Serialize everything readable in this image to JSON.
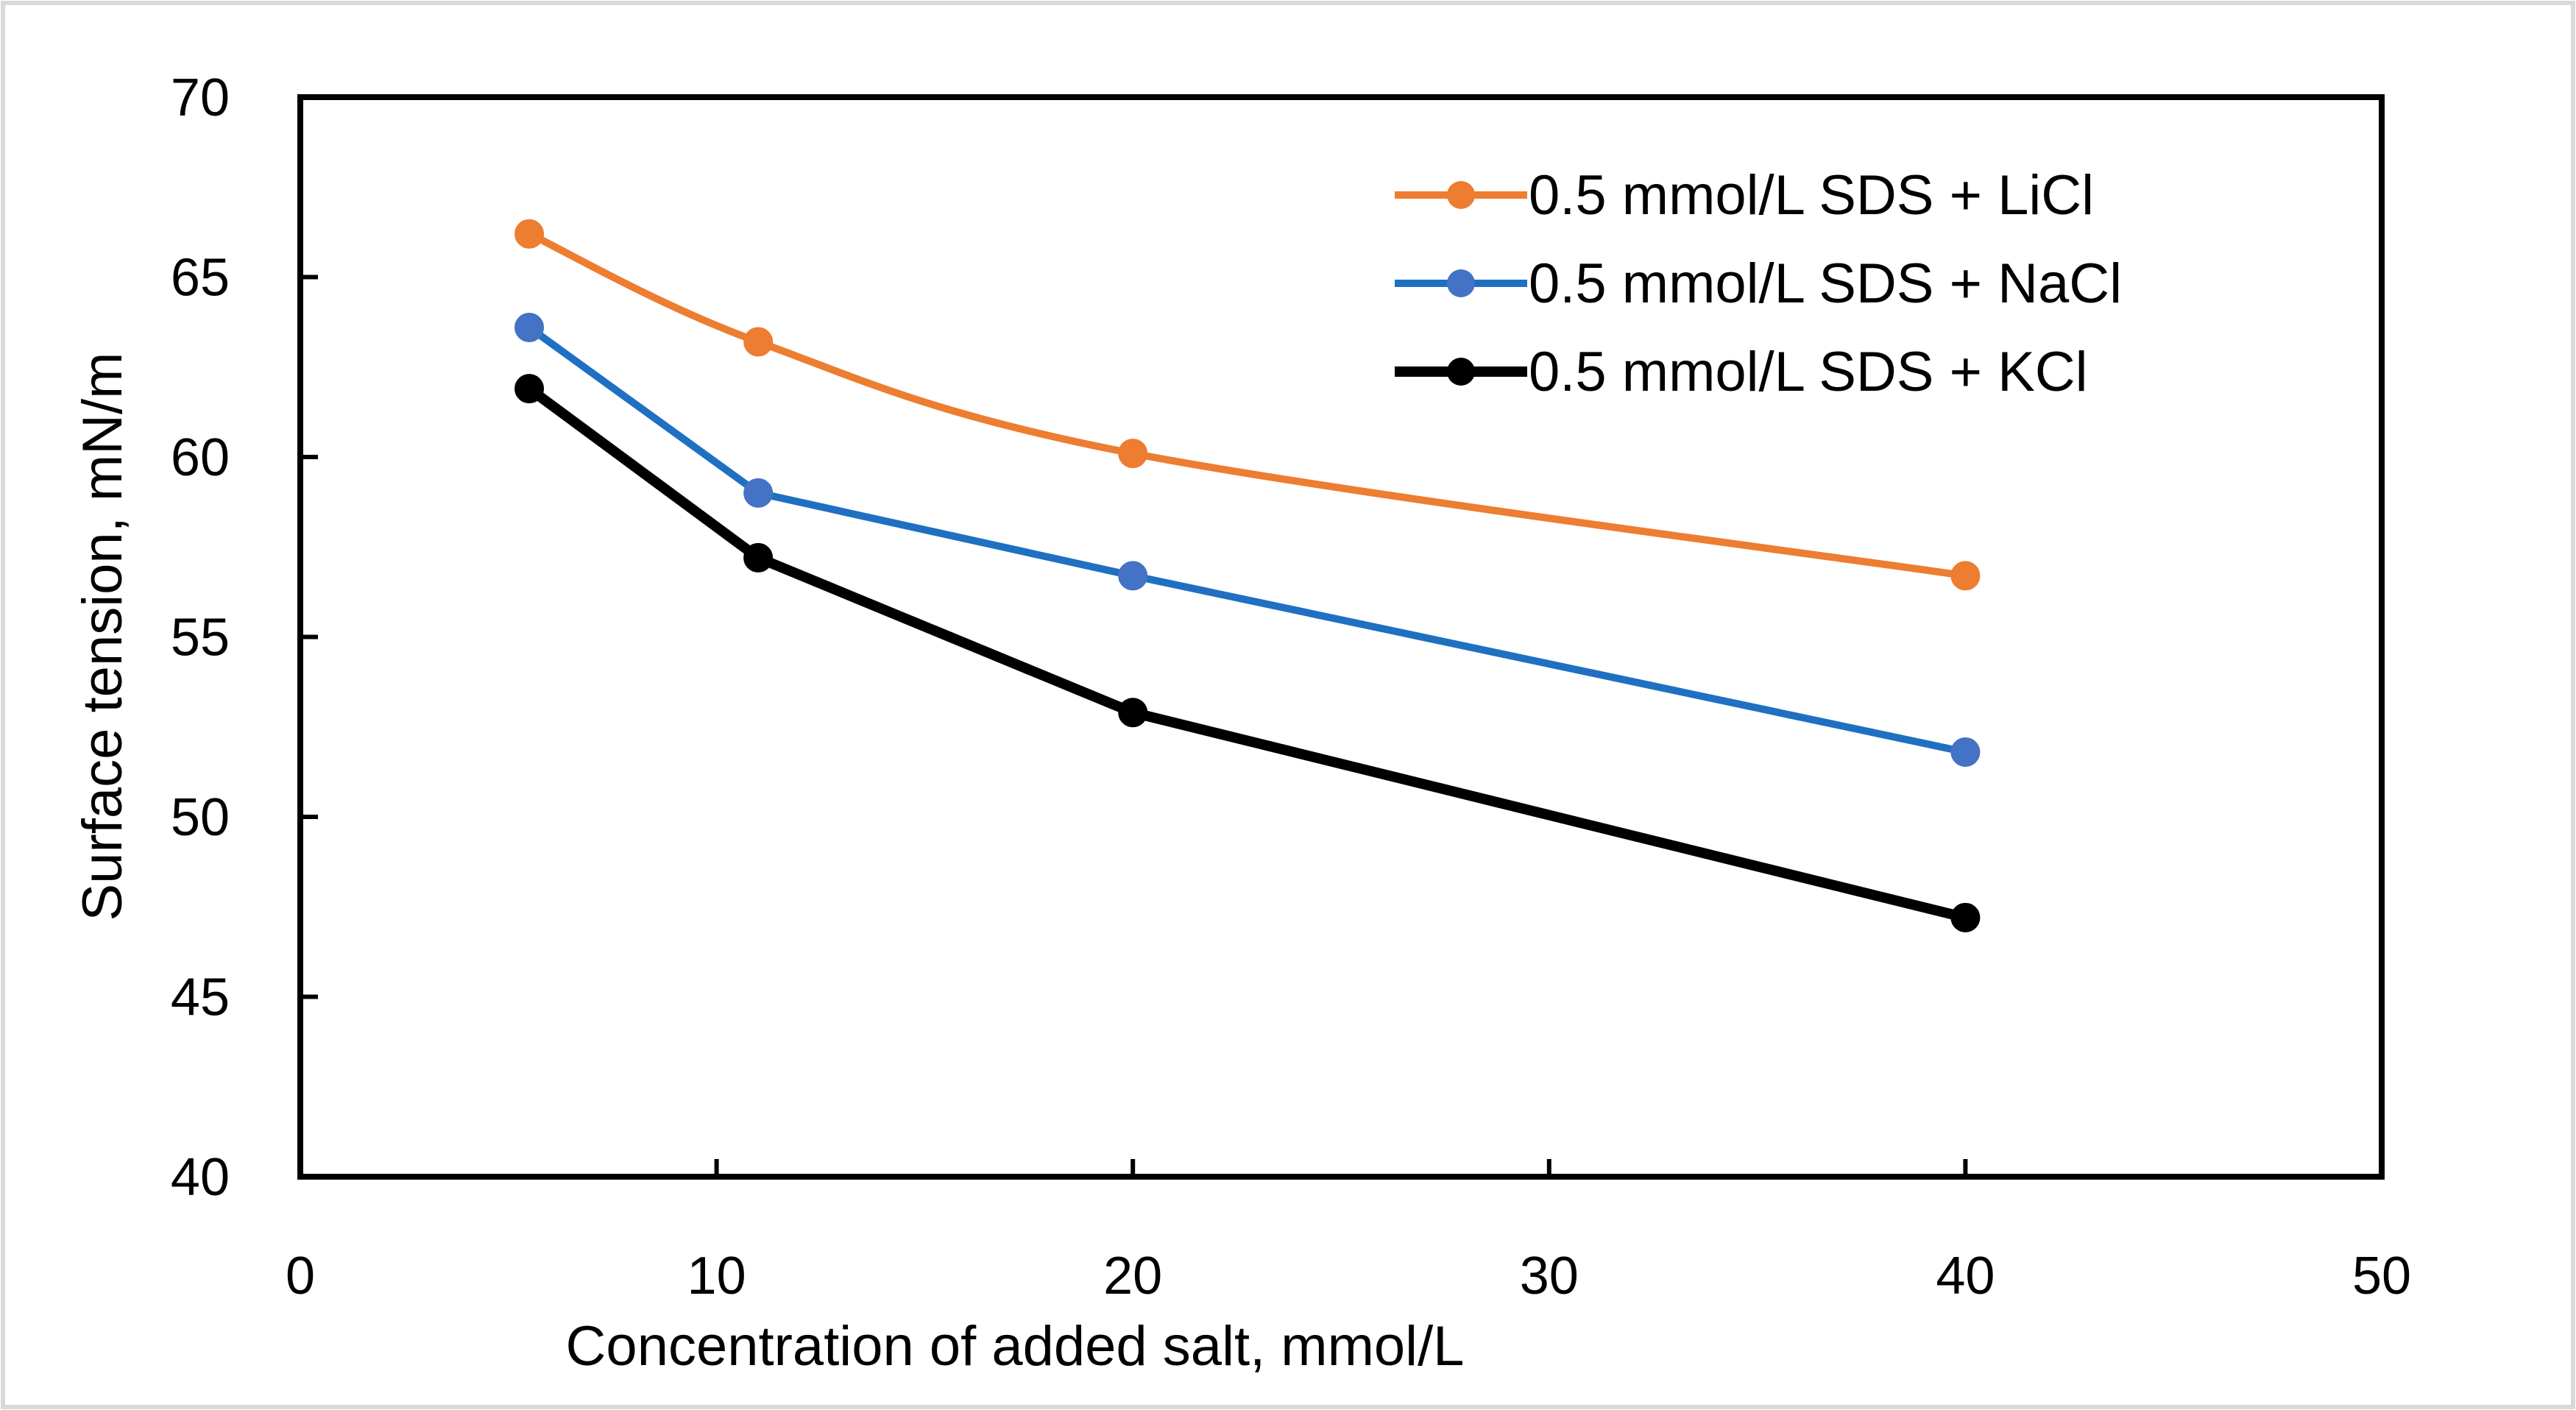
{
  "chart_data": {
    "type": "line",
    "title": "",
    "xlabel": "Concentration of added salt, mmol/L",
    "ylabel": "Surface tension, mN/m",
    "xlim": [
      0,
      50
    ],
    "ylim": [
      40,
      70
    ],
    "xticks": [
      0,
      10,
      20,
      30,
      40,
      50
    ],
    "yticks": [
      40,
      45,
      50,
      55,
      60,
      65,
      70
    ],
    "x": [
      5.5,
      11,
      20,
      40
    ],
    "grid": false,
    "legend_position": "top-right",
    "series": [
      {
        "name": "0.5 mmol/L SDS + LiCl",
        "color": "#ED7D31",
        "smooth": true,
        "values": [
          66.2,
          63.2,
          60.1,
          56.7
        ]
      },
      {
        "name": "0.5 mmol/L SDS + NaCl",
        "color": "#1F70C1",
        "marker_color": "#4472C4",
        "smooth": false,
        "values": [
          63.6,
          59.0,
          56.7,
          51.8
        ]
      },
      {
        "name": "0.5 mmol/L SDS + KCl",
        "color": "#000000",
        "smooth": false,
        "values": [
          61.9,
          57.2,
          52.9,
          47.2
        ]
      }
    ]
  }
}
